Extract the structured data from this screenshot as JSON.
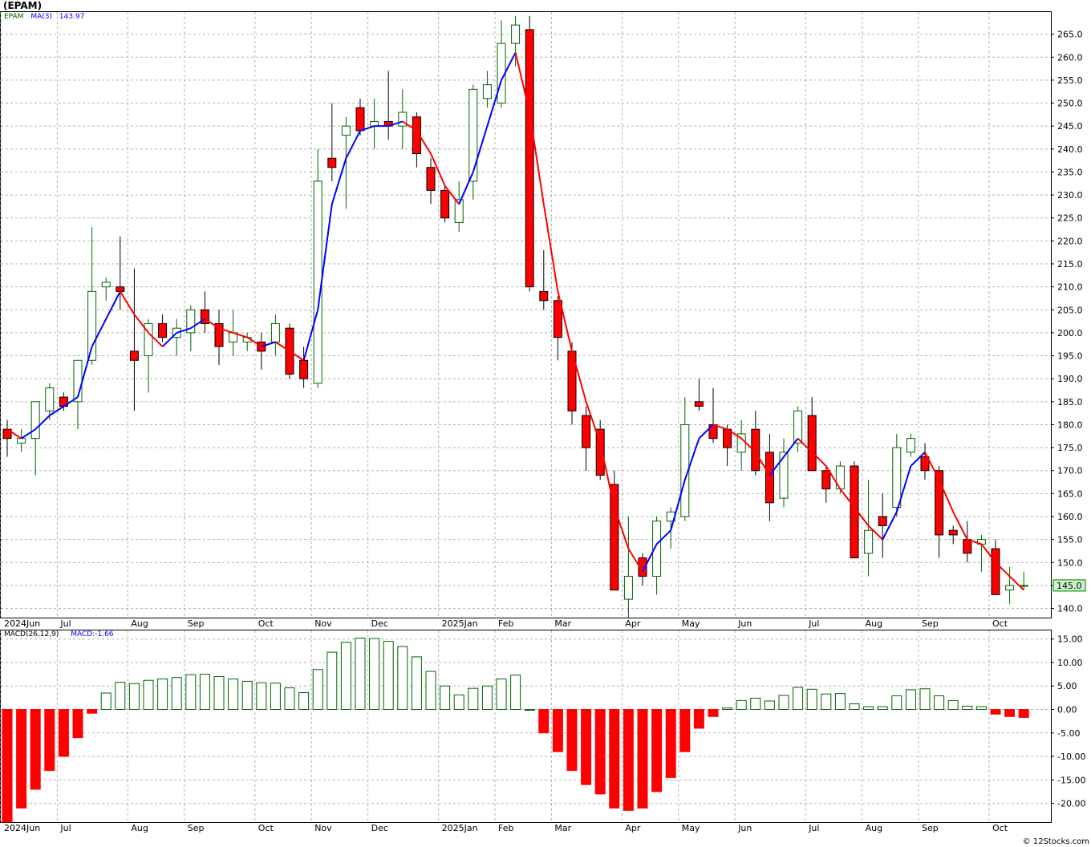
{
  "header": {
    "ticker": "(EPAM)"
  },
  "price_legend": {
    "symbol": "EPAM",
    "ma_label": "MA(3)",
    "ma_value": "143.97"
  },
  "macd_legend": {
    "label": "MACD(26,12,9)",
    "value_label": "MACD:-1.66"
  },
  "last_price_tag": "145.0",
  "footer": {
    "credit": "© 12Stocks.com"
  },
  "colors": {
    "up": "#006400",
    "down": "#ff0000",
    "ma_up": "#0000ff",
    "ma_down": "#ff0000",
    "grid": "#b0b0b0",
    "tag_bg": "#c8f5c8"
  },
  "chart_data": [
    {
      "type": "candlestick",
      "title": "(EPAM)",
      "x_labels": [
        {
          "label": "2024Jun",
          "index": 0
        },
        {
          "label": "Jul",
          "index": 4
        },
        {
          "label": "Aug",
          "index": 9
        },
        {
          "label": "Sep",
          "index": 13
        },
        {
          "label": "Oct",
          "index": 18
        },
        {
          "label": "Nov",
          "index": 22
        },
        {
          "label": "Dec",
          "index": 26
        },
        {
          "label": "2025Jan",
          "index": 31
        },
        {
          "label": "Feb",
          "index": 35
        },
        {
          "label": "Mar",
          "index": 39
        },
        {
          "label": "Apr",
          "index": 44
        },
        {
          "label": "May",
          "index": 48
        },
        {
          "label": "Jun",
          "index": 52
        },
        {
          "label": "Jul",
          "index": 57
        },
        {
          "label": "Aug",
          "index": 61
        },
        {
          "label": "Sep",
          "index": 65
        },
        {
          "label": "Oct",
          "index": 70
        }
      ],
      "ylim": [
        138,
        270
      ],
      "y_ticks": [
        140,
        145,
        150,
        155,
        160,
        165,
        170,
        175,
        180,
        185,
        190,
        195,
        200,
        205,
        210,
        215,
        220,
        225,
        230,
        235,
        240,
        245,
        250,
        255,
        260,
        265
      ],
      "candles": [
        {
          "o": 179,
          "h": 181,
          "l": 173,
          "c": 177
        },
        {
          "o": 176,
          "h": 179,
          "l": 174,
          "c": 177
        },
        {
          "o": 177,
          "h": 185,
          "l": 169,
          "c": 185
        },
        {
          "o": 183,
          "h": 189,
          "l": 181,
          "c": 188
        },
        {
          "o": 186,
          "h": 187,
          "l": 183,
          "c": 184
        },
        {
          "o": 185,
          "h": 194,
          "l": 179,
          "c": 194
        },
        {
          "o": 194,
          "h": 223,
          "l": 193,
          "c": 209
        },
        {
          "o": 210,
          "h": 212,
          "l": 207,
          "c": 211
        },
        {
          "o": 210,
          "h": 221,
          "l": 205,
          "c": 209
        },
        {
          "o": 196,
          "h": 214,
          "l": 183,
          "c": 194
        },
        {
          "o": 195,
          "h": 203,
          "l": 187,
          "c": 202
        },
        {
          "o": 202,
          "h": 204,
          "l": 198,
          "c": 199
        },
        {
          "o": 199,
          "h": 203,
          "l": 195,
          "c": 201
        },
        {
          "o": 200,
          "h": 206,
          "l": 196,
          "c": 205
        },
        {
          "o": 205,
          "h": 209,
          "l": 200,
          "c": 202
        },
        {
          "o": 202,
          "h": 205,
          "l": 193,
          "c": 197
        },
        {
          "o": 198,
          "h": 205,
          "l": 195,
          "c": 200
        },
        {
          "o": 198,
          "h": 200,
          "l": 196,
          "c": 199
        },
        {
          "o": 198,
          "h": 200,
          "l": 192,
          "c": 196
        },
        {
          "o": 198,
          "h": 204,
          "l": 195,
          "c": 202
        },
        {
          "o": 201,
          "h": 202,
          "l": 190,
          "c": 191
        },
        {
          "o": 194,
          "h": 197,
          "l": 188,
          "c": 190
        },
        {
          "o": 189,
          "h": 240,
          "l": 188,
          "c": 233
        },
        {
          "o": 238,
          "h": 250,
          "l": 233,
          "c": 236
        },
        {
          "o": 243,
          "h": 247,
          "l": 227,
          "c": 245
        },
        {
          "o": 249,
          "h": 251,
          "l": 243,
          "c": 244
        },
        {
          "o": 245,
          "h": 251,
          "l": 240,
          "c": 246
        },
        {
          "o": 246,
          "h": 257,
          "l": 242,
          "c": 245
        },
        {
          "o": 245,
          "h": 253,
          "l": 240,
          "c": 248
        },
        {
          "o": 247,
          "h": 248,
          "l": 236,
          "c": 239
        },
        {
          "o": 236,
          "h": 238,
          "l": 228,
          "c": 231
        },
        {
          "o": 231,
          "h": 232,
          "l": 224,
          "c": 225
        },
        {
          "o": 224,
          "h": 233,
          "l": 222,
          "c": 229
        },
        {
          "o": 233,
          "h": 254,
          "l": 229,
          "c": 253
        },
        {
          "o": 251,
          "h": 257,
          "l": 249,
          "c": 254
        },
        {
          "o": 250,
          "h": 268,
          "l": 249,
          "c": 263
        },
        {
          "o": 263,
          "h": 269,
          "l": 258,
          "c": 267
        },
        {
          "o": 266,
          "h": 269,
          "l": 209,
          "c": 210
        },
        {
          "o": 209,
          "h": 218,
          "l": 205,
          "c": 207
        },
        {
          "o": 207,
          "h": 208,
          "l": 194,
          "c": 199
        },
        {
          "o": 196,
          "h": 198,
          "l": 180,
          "c": 183
        },
        {
          "o": 182,
          "h": 184,
          "l": 170,
          "c": 175
        },
        {
          "o": 179,
          "h": 181,
          "l": 168,
          "c": 169
        },
        {
          "o": 167,
          "h": 170,
          "l": 144,
          "c": 144
        },
        {
          "o": 142,
          "h": 160,
          "l": 138,
          "c": 147
        },
        {
          "o": 151,
          "h": 152,
          "l": 145,
          "c": 147
        },
        {
          "o": 147,
          "h": 160,
          "l": 143,
          "c": 159
        },
        {
          "o": 159,
          "h": 162,
          "l": 153,
          "c": 161
        },
        {
          "o": 160,
          "h": 186,
          "l": 159,
          "c": 180
        },
        {
          "o": 185,
          "h": 190,
          "l": 183,
          "c": 184
        },
        {
          "o": 180,
          "h": 188,
          "l": 176,
          "c": 177
        },
        {
          "o": 179,
          "h": 180,
          "l": 171,
          "c": 175
        },
        {
          "o": 174,
          "h": 181,
          "l": 170,
          "c": 178
        },
        {
          "o": 179,
          "h": 183,
          "l": 169,
          "c": 170
        },
        {
          "o": 174,
          "h": 178,
          "l": 159,
          "c": 163
        },
        {
          "o": 164,
          "h": 177,
          "l": 162,
          "c": 174
        },
        {
          "o": 176,
          "h": 184,
          "l": 174,
          "c": 183
        },
        {
          "o": 182,
          "h": 186,
          "l": 170,
          "c": 170
        },
        {
          "o": 170,
          "h": 171,
          "l": 163,
          "c": 166
        },
        {
          "o": 166,
          "h": 172,
          "l": 165,
          "c": 171
        },
        {
          "o": 171,
          "h": 172,
          "l": 151,
          "c": 151
        },
        {
          "o": 152,
          "h": 168,
          "l": 147,
          "c": 157
        },
        {
          "o": 160,
          "h": 165,
          "l": 151,
          "c": 158
        },
        {
          "o": 162,
          "h": 178,
          "l": 160,
          "c": 175
        },
        {
          "o": 174,
          "h": 178,
          "l": 173,
          "c": 177
        },
        {
          "o": 173,
          "h": 176,
          "l": 168,
          "c": 170
        },
        {
          "o": 170,
          "h": 171,
          "l": 151,
          "c": 156
        },
        {
          "o": 157,
          "h": 158,
          "l": 154,
          "c": 156
        },
        {
          "o": 155,
          "h": 159,
          "l": 150,
          "c": 152
        },
        {
          "o": 154,
          "h": 156,
          "l": 148,
          "c": 155
        },
        {
          "o": 153,
          "h": 155,
          "l": 143,
          "c": 143
        },
        {
          "o": 144,
          "h": 149,
          "l": 141,
          "c": 145
        },
        {
          "o": 145,
          "h": 148,
          "l": 144,
          "c": 145
        }
      ],
      "series": [
        {
          "name": "MA(3)",
          "values": [
            179,
            177,
            179,
            182,
            184,
            186,
            197,
            203,
            209,
            204,
            200,
            197,
            200,
            201,
            203,
            201,
            200,
            199,
            197,
            198,
            196,
            194,
            205,
            228,
            238,
            244,
            245,
            245,
            246,
            244,
            239,
            232,
            228,
            235,
            245,
            255,
            261,
            248,
            228,
            209,
            196,
            185,
            176,
            162,
            153,
            148,
            154,
            157,
            168,
            177,
            180,
            179,
            177,
            174,
            169,
            173,
            177,
            174,
            171,
            166,
            162,
            158,
            155,
            161,
            171,
            174,
            168,
            161,
            155,
            154,
            150,
            147,
            144
          ]
        }
      ],
      "last_price": 145.0
    },
    {
      "type": "bar",
      "title": "MACD(26,12,9)",
      "ylim": [
        -24,
        17
      ],
      "y_ticks": [
        -20,
        -15,
        -10,
        -5,
        0,
        5,
        10,
        15
      ],
      "series": [
        {
          "name": "MACD",
          "values": [
            -24,
            -21,
            -17,
            -13,
            -10,
            -6,
            -0.8,
            3.5,
            5.8,
            5.5,
            6.2,
            6.5,
            6.8,
            7.4,
            7.5,
            7.0,
            6.5,
            6.0,
            5.7,
            5.6,
            4.6,
            3.6,
            8.5,
            12.2,
            14.3,
            15.2,
            15.1,
            14.5,
            13.4,
            11.2,
            8.1,
            5.0,
            3.1,
            4.5,
            5.0,
            6.5,
            7.3,
            0,
            -5,
            -9,
            -13,
            -16,
            -18,
            -21,
            -21.5,
            -21,
            -17.5,
            -14.5,
            -9,
            -4,
            -1.5,
            0.3,
            1.9,
            2.4,
            1.8,
            3.0,
            4.7,
            4.3,
            3.3,
            3.4,
            1.2,
            0.6,
            0.6,
            2.9,
            4.2,
            4.4,
            2.9,
            1.9,
            0.7,
            0.6,
            -1,
            -1.5,
            -1.7
          ]
        }
      ]
    }
  ]
}
